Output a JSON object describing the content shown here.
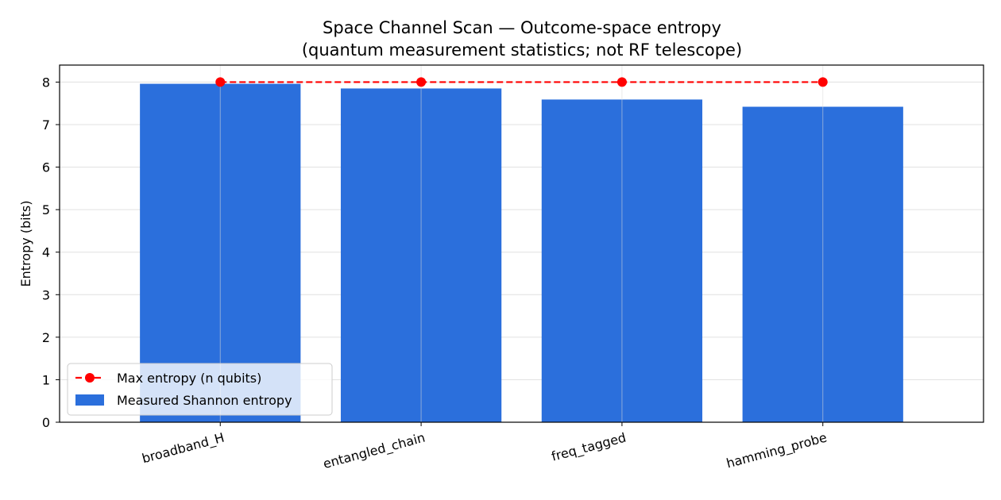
{
  "chart_data": {
    "type": "bar",
    "title_line1": "Space Channel Scan — Outcome-space entropy",
    "title_line2": "(quantum measurement statistics; not RF telescope)",
    "xlabel": "",
    "ylabel": "Entropy (bits)",
    "ylim": [
      0,
      8.4
    ],
    "yticks": [
      0,
      1,
      2,
      3,
      4,
      5,
      6,
      7,
      8
    ],
    "grid": true,
    "legend_placement": "lower-left",
    "categories": [
      "broadband_H",
      "entangled_chain",
      "freq_tagged",
      "hamming_probe"
    ],
    "series": [
      {
        "name": "Measured Shannon entropy",
        "kind": "bar",
        "color": "#2b6fdc",
        "values": [
          7.96,
          7.85,
          7.59,
          7.42
        ]
      },
      {
        "name": "Max entropy (n qubits)",
        "kind": "line",
        "style": "dashed",
        "marker": "circle",
        "color": "#ff0000",
        "values": [
          8,
          8,
          8,
          8
        ]
      }
    ]
  }
}
